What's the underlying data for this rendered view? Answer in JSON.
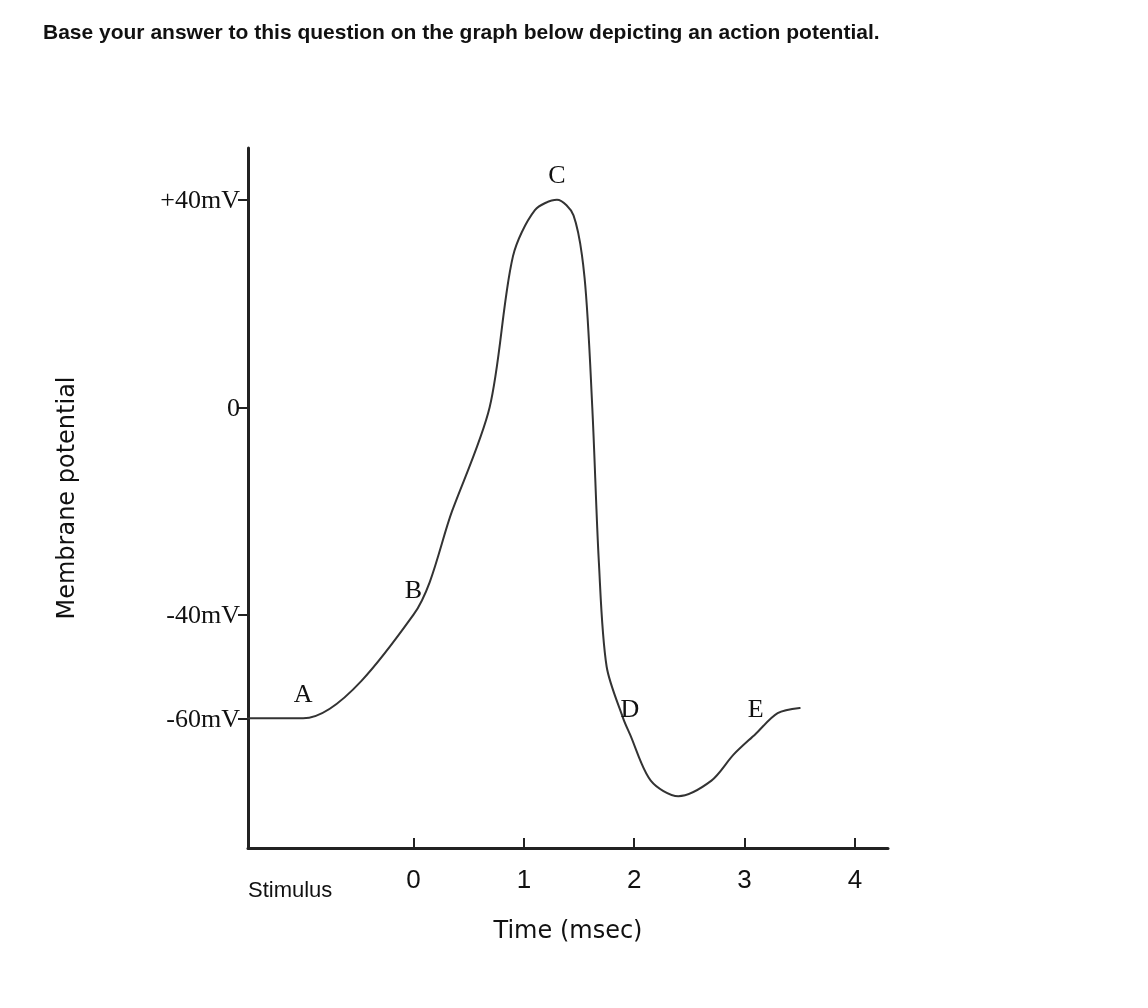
{
  "chart_data": {
    "type": "line",
    "title": "Base your answer to this question on the graph below depicting an action potential.",
    "xlabel": "Time (msec)",
    "ylabel": "Membrane potential",
    "x": [
      -1.5,
      -1.0,
      0,
      0.35,
      0.69,
      0.9,
      1.1,
      1.3,
      1.45,
      1.55,
      1.62,
      1.68,
      1.75,
      1.9,
      1.96,
      2.15,
      2.4,
      2.7,
      2.9,
      3.1,
      3.3,
      3.5
    ],
    "series": [
      {
        "color": "#333333",
        "values": [
          -60,
          -60,
          -40,
          -20,
          0,
          29,
          38,
          40,
          37,
          25,
          0,
          -30,
          -50,
          -60,
          -63,
          -72,
          -75,
          -72,
          -67,
          -63,
          -59,
          -58
        ]
      }
    ],
    "xlim": [
      -1.5,
      4.3
    ],
    "xticks": [
      0,
      1,
      2,
      3,
      4
    ],
    "ylim": [
      -85,
      50
    ],
    "yticks": [
      {
        "value": 40,
        "label": "+40mV"
      },
      0,
      {
        "value": -40,
        "label": "-40mV"
      },
      {
        "value": -60,
        "label": "-60mV"
      }
    ],
    "annotations": [
      {
        "text": "A",
        "x": -1,
        "y": -60
      },
      {
        "text": "B",
        "x": 0,
        "y": -40
      },
      {
        "text": "C",
        "x": 1.3,
        "y": 40
      },
      {
        "text": "D",
        "x": 1.96,
        "y": -63
      },
      {
        "text": "E",
        "x": 3.1,
        "y": -63
      },
      "Stimulus"
    ],
    "grid": false,
    "marker": "none",
    "line_style": "solid"
  }
}
